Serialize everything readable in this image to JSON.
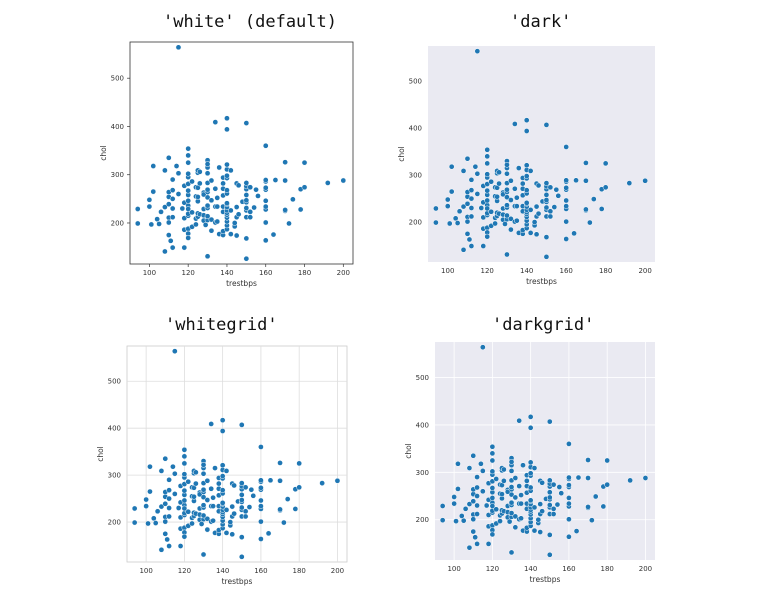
{
  "titles": [
    "'white' (default)",
    "'dark'",
    "'whitegrid'",
    "'darkgrid'"
  ],
  "styles": {
    "white": {
      "bg": "#ffffff",
      "grid": false,
      "frame": "#333333",
      "grid_color": "#dddddd"
    },
    "dark": {
      "bg": "#eaeaf2",
      "grid": false,
      "frame": "none",
      "grid_color": "#ffffff"
    },
    "whitegrid": {
      "bg": "#ffffff",
      "grid": true,
      "frame": "#cccccc",
      "grid_color": "#dddddd"
    },
    "darkgrid": {
      "bg": "#eaeaf2",
      "grid": true,
      "frame": "none",
      "grid_color": "#ffffff"
    }
  },
  "point_color": "#1f77b4",
  "chart_data": [
    {
      "type": "scatter",
      "style": "white",
      "title": "'white' (default)",
      "xlabel": "trestbps",
      "ylabel": "chol",
      "xlim": [
        90,
        205
      ],
      "ylim": [
        115,
        575
      ],
      "xticks": [
        100,
        120,
        140,
        160,
        180,
        200
      ],
      "yticks": [
        200,
        300,
        400,
        500
      ],
      "grid": false,
      "points": [
        [
          94,
          199
        ],
        [
          94,
          229
        ],
        [
          100,
          234
        ],
        [
          100,
          248
        ],
        [
          101,
          197
        ],
        [
          102,
          318
        ],
        [
          102,
          265
        ],
        [
          104,
          208
        ],
        [
          105,
          198
        ],
        [
          106,
          223
        ],
        [
          108,
          141
        ],
        [
          108,
          233
        ],
        [
          108,
          309
        ],
        [
          110,
          254
        ],
        [
          110,
          211
        ],
        [
          110,
          335
        ],
        [
          110,
          264
        ],
        [
          110,
          239
        ],
        [
          110,
          201
        ],
        [
          110,
          175
        ],
        [
          111,
          163
        ],
        [
          112,
          230
        ],
        [
          112,
          149
        ],
        [
          112,
          212
        ],
        [
          112,
          250
        ],
        [
          112,
          268
        ],
        [
          112,
          290
        ],
        [
          114,
          318
        ],
        [
          115,
          564
        ],
        [
          115,
          303
        ],
        [
          115,
          260
        ],
        [
          117,
          230
        ],
        [
          118,
          242
        ],
        [
          118,
          186
        ],
        [
          118,
          277
        ],
        [
          118,
          210
        ],
        [
          118,
          149
        ],
        [
          120,
          188
        ],
        [
          120,
          215
        ],
        [
          120,
          236
        ],
        [
          120,
          258
        ],
        [
          120,
          267
        ],
        [
          120,
          281
        ],
        [
          120,
          295
        ],
        [
          120,
          302
        ],
        [
          120,
          325
        ],
        [
          120,
          340
        ],
        [
          120,
          354
        ],
        [
          120,
          178
        ],
        [
          120,
          219
        ],
        [
          120,
          246
        ],
        [
          120,
          229
        ],
        [
          120,
          169
        ],
        [
          122,
          222
        ],
        [
          122,
          192
        ],
        [
          122,
          286
        ],
        [
          124,
          197
        ],
        [
          124,
          255
        ],
        [
          124,
          274
        ],
        [
          124,
          209
        ],
        [
          125,
          213
        ],
        [
          125,
          245
        ],
        [
          125,
          254
        ],
        [
          125,
          273
        ],
        [
          125,
          304
        ],
        [
          125,
          309
        ],
        [
          125,
          220
        ],
        [
          126,
          218
        ],
        [
          126,
          282
        ],
        [
          126,
          306
        ],
        [
          128,
          205
        ],
        [
          128,
          229
        ],
        [
          128,
          263
        ],
        [
          128,
          216
        ],
        [
          128,
          259
        ],
        [
          129,
          196
        ],
        [
          130,
          131
        ],
        [
          130,
          206
        ],
        [
          130,
          214
        ],
        [
          130,
          233
        ],
        [
          130,
          253
        ],
        [
          130,
          264
        ],
        [
          130,
          269
        ],
        [
          130,
          283
        ],
        [
          130,
          303
        ],
        [
          130,
          330
        ],
        [
          130,
          231
        ],
        [
          130,
          236
        ],
        [
          130,
          315
        ],
        [
          130,
          322
        ],
        [
          132,
          184
        ],
        [
          132,
          207
        ],
        [
          132,
          247
        ],
        [
          132,
          288
        ],
        [
          134,
          201
        ],
        [
          134,
          234
        ],
        [
          134,
          271
        ],
        [
          134,
          409
        ],
        [
          135,
          203
        ],
        [
          135,
          234
        ],
        [
          135,
          252
        ],
        [
          136,
          177
        ],
        [
          136,
          315
        ],
        [
          138,
          175
        ],
        [
          138,
          183
        ],
        [
          138,
          223
        ],
        [
          138,
          234
        ],
        [
          138,
          257
        ],
        [
          138,
          271
        ],
        [
          138,
          282
        ],
        [
          138,
          294
        ],
        [
          140,
          187
        ],
        [
          140,
          195
        ],
        [
          140,
          203
        ],
        [
          140,
          211
        ],
        [
          140,
          217
        ],
        [
          140,
          221
        ],
        [
          140,
          226
        ],
        [
          140,
          233
        ],
        [
          140,
          239
        ],
        [
          140,
          241
        ],
        [
          140,
          261
        ],
        [
          140,
          268
        ],
        [
          140,
          293
        ],
        [
          140,
          298
        ],
        [
          140,
          311
        ],
        [
          140,
          321
        ],
        [
          140,
          394
        ],
        [
          140,
          417
        ],
        [
          142,
          177
        ],
        [
          142,
          226
        ],
        [
          142,
          309
        ],
        [
          144,
          193
        ],
        [
          144,
          200
        ],
        [
          145,
          174
        ],
        [
          145,
          212
        ],
        [
          145,
          233
        ],
        [
          145,
          282
        ],
        [
          146,
          218
        ],
        [
          146,
          278
        ],
        [
          148,
          244
        ],
        [
          150,
          126
        ],
        [
          150,
          168
        ],
        [
          150,
          212
        ],
        [
          150,
          226
        ],
        [
          150,
          231
        ],
        [
          150,
          243
        ],
        [
          150,
          247
        ],
        [
          150,
          258
        ],
        [
          150,
          270
        ],
        [
          150,
          276
        ],
        [
          150,
          407
        ],
        [
          150,
          283
        ],
        [
          152,
          212
        ],
        [
          152,
          223
        ],
        [
          152,
          274
        ],
        [
          154,
          232
        ],
        [
          155,
          269
        ],
        [
          156,
          256
        ],
        [
          160,
          164
        ],
        [
          160,
          201
        ],
        [
          160,
          228
        ],
        [
          160,
          234
        ],
        [
          160,
          246
        ],
        [
          160,
          269
        ],
        [
          160,
          273
        ],
        [
          160,
          286
        ],
        [
          160,
          289
        ],
        [
          160,
          360
        ],
        [
          164,
          176
        ],
        [
          165,
          289
        ],
        [
          170,
          225
        ],
        [
          170,
          227
        ],
        [
          170,
          288
        ],
        [
          170,
          326
        ],
        [
          172,
          199
        ],
        [
          174,
          249
        ],
        [
          178,
          228
        ],
        [
          178,
          270
        ],
        [
          180,
          274
        ],
        [
          180,
          325
        ],
        [
          192,
          283
        ],
        [
          200,
          288
        ]
      ]
    },
    {
      "type": "scatter",
      "style": "dark",
      "title": "'dark'",
      "xlabel": "trestbps",
      "ylabel": "chol",
      "xlim": [
        90,
        205
      ],
      "ylim": [
        115,
        575
      ],
      "xticks": [
        100,
        120,
        140,
        160,
        180,
        200
      ],
      "yticks": [
        200,
        300,
        400,
        500
      ],
      "grid": false,
      "points": "same as white"
    },
    {
      "type": "scatter",
      "style": "whitegrid",
      "title": "'whitegrid'",
      "xlabel": "trestbps",
      "ylabel": "chol",
      "xlim": [
        90,
        205
      ],
      "ylim": [
        115,
        575
      ],
      "xticks": [
        100,
        120,
        140,
        160,
        180,
        200
      ],
      "yticks": [
        200,
        300,
        400,
        500
      ],
      "grid": true,
      "points": "same as white"
    },
    {
      "type": "scatter",
      "style": "darkgrid",
      "title": "'darkgrid'",
      "xlabel": "trestbps",
      "ylabel": "chol",
      "xlim": [
        90,
        205
      ],
      "ylim": [
        115,
        575
      ],
      "xticks": [
        100,
        120,
        140,
        160,
        180,
        200
      ],
      "yticks": [
        200,
        300,
        400,
        500
      ],
      "grid": true,
      "points": "same as white"
    }
  ]
}
